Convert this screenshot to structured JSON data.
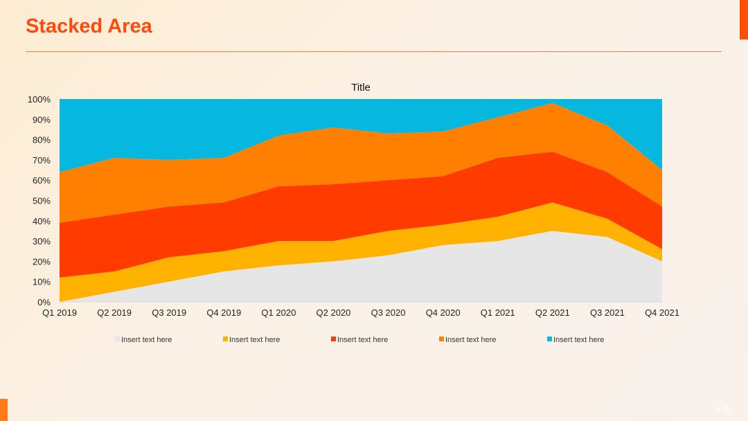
{
  "slide": {
    "title": "Stacked Area",
    "page_number": "175"
  },
  "colors": {
    "accent": "#ff4f06",
    "title": "#ff4a0c"
  },
  "chart_data": {
    "type": "area",
    "stacked": true,
    "percent": true,
    "title": "Title",
    "xlabel": "",
    "ylabel": "",
    "ylim": [
      0,
      100
    ],
    "y_ticks": [
      "0%",
      "10%",
      "20%",
      "30%",
      "40%",
      "50%",
      "60%",
      "70%",
      "80%",
      "90%",
      "100%"
    ],
    "categories": [
      "Q1 2019",
      "Q2 2019",
      "Q3 2019",
      "Q4 2019",
      "Q1 2020",
      "Q2 2020",
      "Q3 2020",
      "Q4 2020",
      "Q1 2021",
      "Q2 2021",
      "Q3 2021",
      "Q4 2021"
    ],
    "legend_position": "bottom",
    "grid": false,
    "series": [
      {
        "name": "Insert text here",
        "color": "#e6e6e6",
        "values": [
          0,
          5,
          10,
          15,
          18,
          20,
          23,
          28,
          30,
          35,
          32,
          20
        ]
      },
      {
        "name": "Insert text here",
        "color": "#ffb200",
        "values": [
          12,
          10,
          12,
          10,
          12,
          10,
          12,
          10,
          12,
          14,
          9,
          6
        ]
      },
      {
        "name": "Insert text here",
        "color": "#ff3b00",
        "values": [
          27,
          28,
          25,
          24,
          27,
          28,
          25,
          24,
          29,
          25,
          23,
          21
        ]
      },
      {
        "name": "Insert text here",
        "color": "#ff7f00",
        "values": [
          25,
          28,
          23,
          22,
          25,
          28,
          23,
          22,
          20,
          24,
          23,
          18
        ]
      },
      {
        "name": "Insert text here",
        "color": "#06b8df",
        "values": [
          36,
          29,
          30,
          29,
          18,
          14,
          17,
          16,
          9,
          2,
          13,
          35
        ]
      }
    ]
  }
}
